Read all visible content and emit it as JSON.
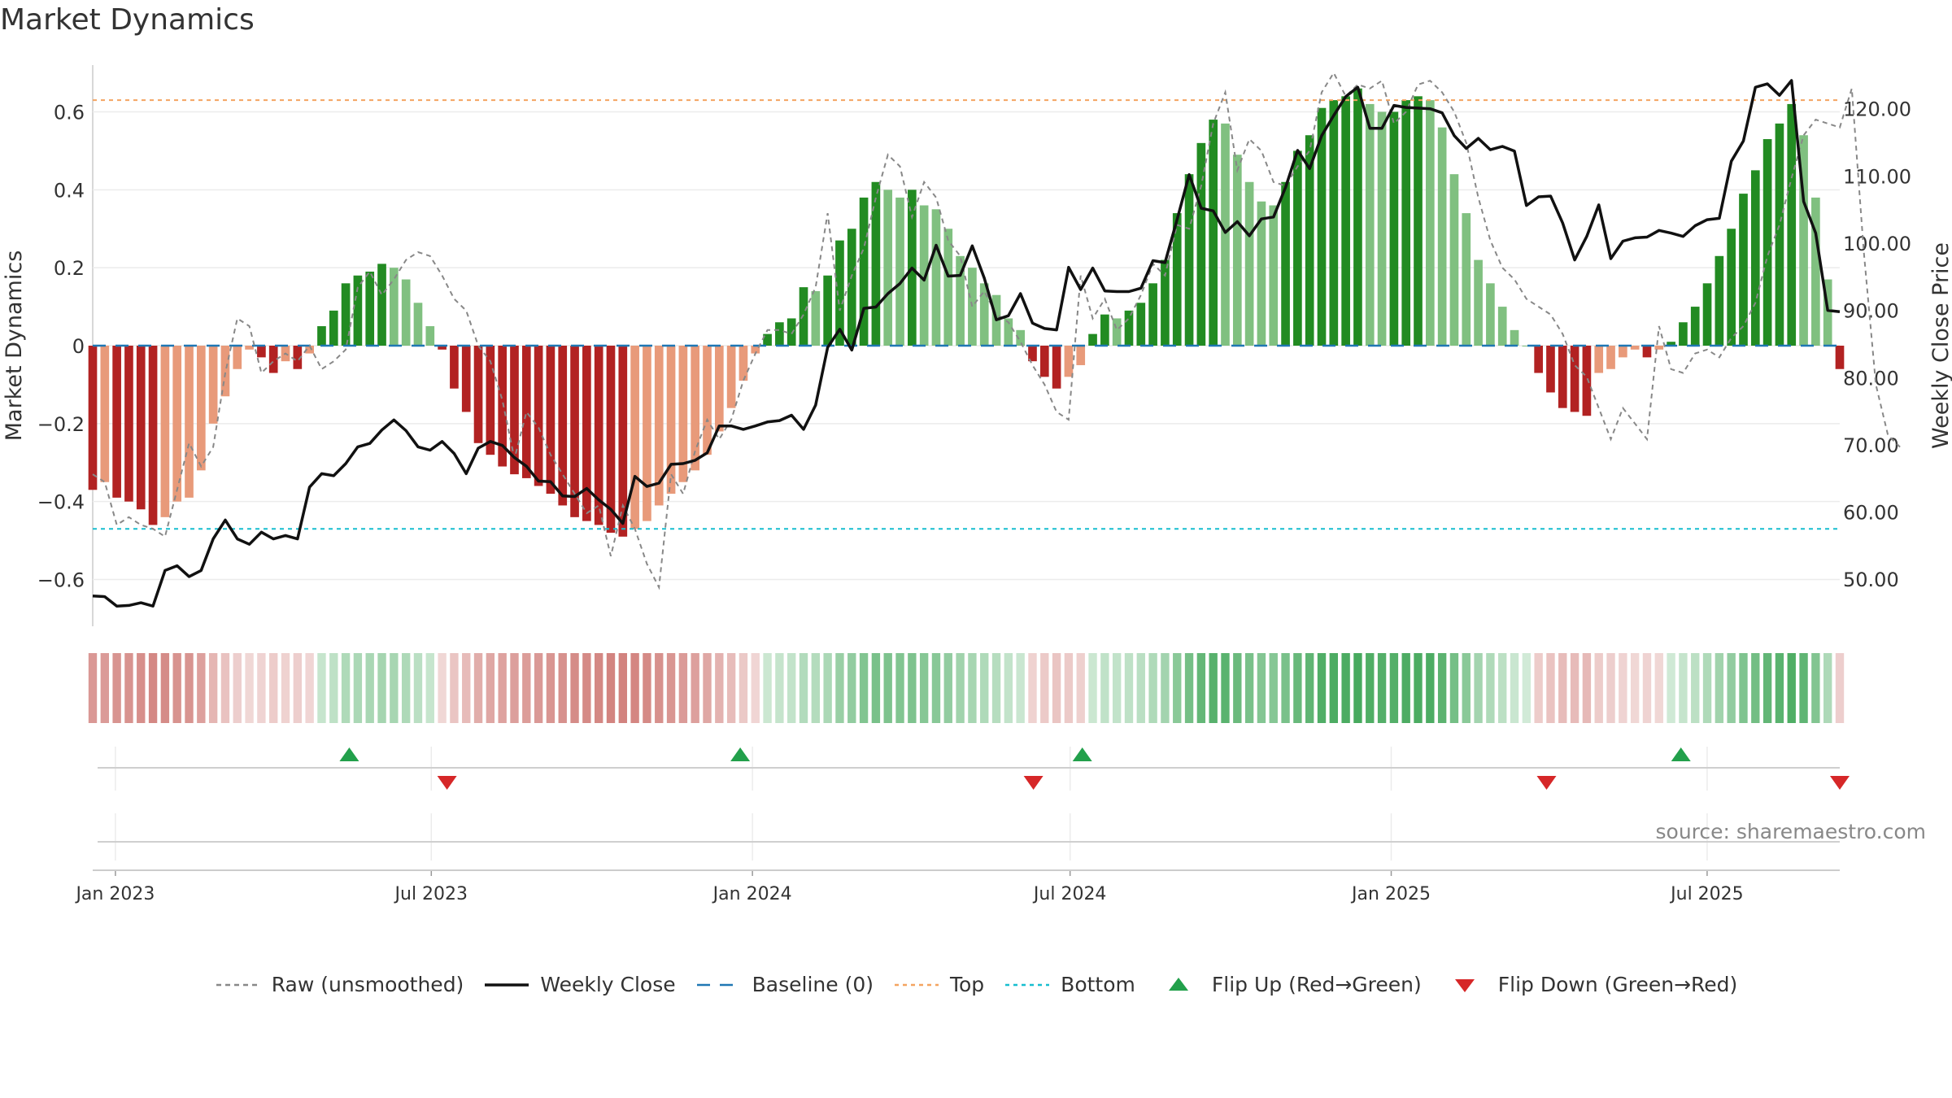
{
  "chart_data": {
    "type": "bar",
    "title": "Market Dynamics",
    "source": "source: sharemaestro.com",
    "ylabel": "Market Dynamics",
    "y2label": "Weekly Close Price",
    "ylim": [
      -0.72,
      0.72
    ],
    "y2lim": [
      43,
      126.5
    ],
    "yticks": [
      -0.6,
      -0.4,
      -0.2,
      0,
      0.2,
      0.4,
      0.6
    ],
    "ytick_labels": [
      "−0.6",
      "−0.4",
      "−0.2",
      "0",
      "0.2",
      "0.4",
      "0.6"
    ],
    "y2ticks": [
      50,
      60,
      70,
      80,
      90,
      100,
      110,
      120
    ],
    "y2tick_labels": [
      "50.00",
      "60.00",
      "70.00",
      "80.00",
      "90.00",
      "100.00",
      "110.00",
      "120.00"
    ],
    "x_start": "2022-12-19",
    "x_end": "2025-09-15",
    "xticks": [
      "2023-01-01",
      "2023-07-01",
      "2024-01-01",
      "2024-07-01",
      "2025-01-01",
      "2025-07-01"
    ],
    "xtick_labels": [
      "Jan 2023",
      "Jul 2023",
      "Jan 2024",
      "Jul 2024",
      "Jan 2025",
      "Jul 2025"
    ],
    "top_level": 0.63,
    "bottom_level": -0.47,
    "baseline": 0,
    "grid": true,
    "legend_position": "bottom-center",
    "colors": {
      "strong_up": "#228b22",
      "weak_up": "#80c080",
      "strong_down": "#b22222",
      "weak_down": "#e89a7a",
      "raw": "#888888",
      "close": "#111111",
      "baseline": "#1f77b4",
      "top": "#f4a460",
      "bottom": "#17becf",
      "flip_up": "#22a04b",
      "flip_down": "#d62728"
    },
    "series": [
      {
        "name": "Raw (unsmoothed)",
        "values": [
          -0.33,
          -0.35,
          -0.46,
          -0.44,
          -0.46,
          -0.47,
          -0.49,
          -0.37,
          -0.25,
          -0.31,
          -0.26,
          -0.07,
          0.07,
          0.05,
          -0.07,
          -0.04,
          -0.02,
          -0.04,
          0.0,
          -0.06,
          -0.04,
          -0.01,
          0.15,
          0.19,
          0.13,
          0.17,
          0.22,
          0.24,
          0.23,
          0.18,
          0.12,
          0.09,
          0.0,
          -0.04,
          -0.14,
          -0.29,
          -0.17,
          -0.21,
          -0.28,
          -0.33,
          -0.38,
          -0.43,
          -0.41,
          -0.54,
          -0.41,
          -0.47,
          -0.56,
          -0.62,
          -0.33,
          -0.38,
          -0.27,
          -0.19,
          -0.24,
          -0.19,
          -0.09,
          -0.02,
          0.04,
          0.04,
          0.03,
          0.08,
          0.15,
          0.34,
          0.09,
          0.18,
          0.25,
          0.38,
          0.49,
          0.46,
          0.33,
          0.42,
          0.38,
          0.27,
          0.23,
          0.1,
          0.14,
          0.08,
          0.06,
          0.01,
          -0.05,
          -0.1,
          -0.17,
          -0.19,
          0.18,
          0.07,
          0.12,
          0.04,
          0.07,
          0.13,
          0.21,
          0.18,
          0.31,
          0.3,
          0.41,
          0.57,
          0.65,
          0.45,
          0.53,
          0.5,
          0.42,
          0.41,
          0.46,
          0.5,
          0.65,
          0.7,
          0.64,
          0.67,
          0.66,
          0.68,
          0.57,
          0.6,
          0.67,
          0.68,
          0.65,
          0.6,
          0.52,
          0.38,
          0.27,
          0.2,
          0.17,
          0.12,
          0.1,
          0.08,
          0.03,
          -0.05,
          -0.08,
          -0.16,
          -0.24,
          -0.16,
          -0.2,
          -0.24,
          0.05,
          -0.06,
          -0.07,
          -0.02,
          -0.01,
          -0.03,
          0.02,
          0.05,
          0.11,
          0.23,
          0.31,
          0.43,
          0.54,
          0.58,
          0.57,
          0.56,
          0.66,
          0.24,
          -0.1,
          -0.23,
          -0.26
        ]
      },
      {
        "name": "Weekly Close",
        "values": [
          47.5,
          47.4,
          46.0,
          46.1,
          46.5,
          46.0,
          51.3,
          52.0,
          50.4,
          51.3,
          56.0,
          58.8,
          56.0,
          55.2,
          57.0,
          56.0,
          56.5,
          56.0,
          63.7,
          65.7,
          65.4,
          67.2,
          69.7,
          70.2,
          72.2,
          73.7,
          72.1,
          69.7,
          69.2,
          70.5,
          68.7,
          65.7,
          69.5,
          70.5,
          69.9,
          68.1,
          66.8,
          64.6,
          64.5,
          62.4,
          62.3,
          63.5,
          61.8,
          60.4,
          58.3,
          65.3,
          63.8,
          64.3,
          67.1,
          67.2,
          67.7,
          68.8,
          72.8,
          72.8,
          72.3,
          72.8,
          73.4,
          73.6,
          74.4,
          72.3,
          75.9,
          84.5,
          87.2,
          84.1,
          90.3,
          90.5,
          92.5,
          94.0,
          96.3,
          94.5,
          99.7,
          95.1,
          95.2,
          99.6,
          94.8,
          88.6,
          89.2,
          92.5,
          88.1,
          87.3,
          87.1,
          96.4,
          93.1,
          96.3,
          92.9,
          92.8,
          92.8,
          93.3,
          97.4,
          97.1,
          103.5,
          110.2,
          105.2,
          104.8,
          101.6,
          103.2,
          101.1,
          103.6,
          103.9,
          108.3,
          113.8,
          111.1,
          116.0,
          119.0,
          121.8,
          123.2,
          117.1,
          117.1,
          120.5,
          120.2,
          120.1,
          120.0,
          119.4,
          116.0,
          114.1,
          115.6,
          113.9,
          114.4,
          113.7,
          105.6,
          106.9,
          107.0,
          103.0,
          97.5,
          101.0,
          105.7,
          97.7,
          100.3,
          100.8,
          100.9,
          101.9,
          101.5,
          101.0,
          102.6,
          103.5,
          103.7,
          112.2,
          115.2,
          123.2,
          123.7,
          122.0,
          124.2,
          106.2,
          101.5,
          90.0,
          89.8
        ]
      },
      {
        "name": "Baseline (0)"
      },
      {
        "name": "Top"
      },
      {
        "name": "Bottom"
      },
      {
        "name": "Flip Up (Red→Green)"
      },
      {
        "name": "Flip Down (Green→Red)"
      }
    ],
    "histogram": [
      -0.37,
      -0.35,
      -0.39,
      -0.4,
      -0.42,
      -0.46,
      -0.44,
      -0.4,
      -0.39,
      -0.32,
      -0.2,
      -0.13,
      -0.06,
      -0.01,
      -0.03,
      -0.07,
      -0.04,
      -0.06,
      -0.02,
      0.05,
      0.09,
      0.16,
      0.18,
      0.19,
      0.21,
      0.2,
      0.17,
      0.11,
      0.05,
      -0.01,
      -0.11,
      -0.17,
      -0.25,
      -0.28,
      -0.31,
      -0.33,
      -0.34,
      -0.36,
      -0.38,
      -0.41,
      -0.44,
      -0.45,
      -0.46,
      -0.48,
      -0.49,
      -0.47,
      -0.45,
      -0.41,
      -0.38,
      -0.35,
      -0.32,
      -0.28,
      -0.22,
      -0.16,
      -0.09,
      -0.02,
      0.03,
      0.06,
      0.07,
      0.15,
      0.14,
      0.18,
      0.27,
      0.3,
      0.38,
      0.42,
      0.4,
      0.38,
      0.4,
      0.36,
      0.35,
      0.3,
      0.23,
      0.2,
      0.16,
      0.13,
      0.07,
      0.04,
      -0.04,
      -0.08,
      -0.11,
      -0.08,
      -0.05,
      0.03,
      0.08,
      0.07,
      0.09,
      0.11,
      0.16,
      0.22,
      0.34,
      0.44,
      0.52,
      0.58,
      0.57,
      0.49,
      0.42,
      0.37,
      0.36,
      0.42,
      0.5,
      0.54,
      0.61,
      0.63,
      0.64,
      0.66,
      0.62,
      0.6,
      0.6,
      0.63,
      0.64,
      0.63,
      0.56,
      0.44,
      0.34,
      0.22,
      0.16,
      0.1,
      0.04,
      0.0,
      -0.07,
      -0.12,
      -0.16,
      -0.17,
      -0.18,
      -0.07,
      -0.06,
      -0.03,
      -0.01,
      -0.03,
      -0.01,
      0.01,
      0.06,
      0.1,
      0.16,
      0.23,
      0.3,
      0.39,
      0.45,
      0.53,
      0.57,
      0.62,
      0.54,
      0.38,
      0.17,
      -0.06
    ],
    "flip_up_dates": [
      "2023-05-15",
      "2023-12-25",
      "2024-07-08",
      "2025-06-16"
    ],
    "flip_down_dates": [
      "2023-07-10",
      "2024-06-10",
      "2025-03-31",
      "2025-09-15"
    ]
  },
  "legend": [
    {
      "label": "Raw (unsmoothed)",
      "marker": "dashed-line",
      "color": "#888888"
    },
    {
      "label": "Weekly Close",
      "marker": "solid-line",
      "color": "#111111"
    },
    {
      "label": "Baseline (0)",
      "marker": "long-dash-line",
      "color": "#1f77b4"
    },
    {
      "label": "Top",
      "marker": "dotted-line",
      "color": "#f4a460"
    },
    {
      "label": "Bottom",
      "marker": "dotted-line",
      "color": "#17becf"
    },
    {
      "label": "Flip Up (Red→Green)",
      "marker": "triangle-up",
      "color": "#22a04b"
    },
    {
      "label": "Flip Down (Green→Red)",
      "marker": "triangle-down",
      "color": "#d62728"
    }
  ]
}
